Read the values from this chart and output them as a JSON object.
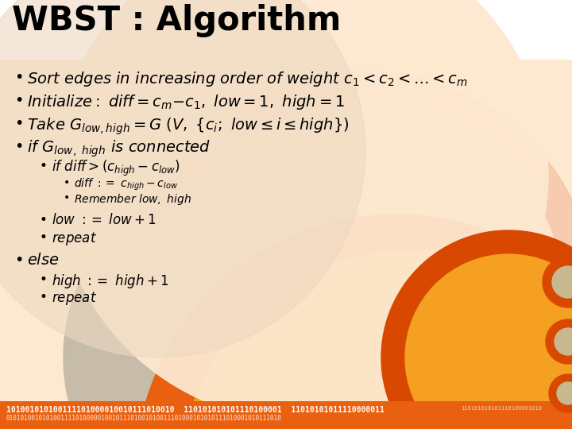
{
  "title": "WBST : Algorithm",
  "background_color": "#FDE8D0",
  "header_bg": "#FFFFFF",
  "orange_dark": "#E05500",
  "orange_mid": "#F07820",
  "orange_bright": "#FF9900",
  "pink_arc": "#F5C0A0",
  "gray_circle": "#C0B8A8",
  "figsize": [
    7.2,
    5.4
  ],
  "dpi": 100
}
